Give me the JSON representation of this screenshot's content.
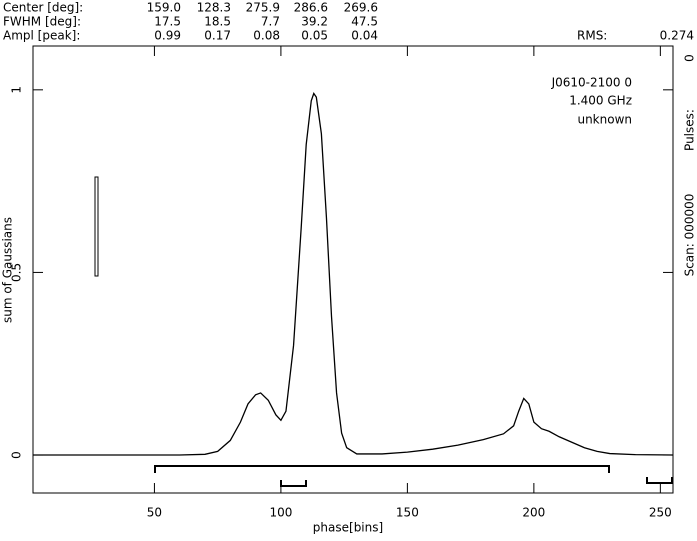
{
  "header": {
    "rows": [
      {
        "label": "Center [deg]:",
        "values": [
          "159.0",
          "128.3",
          "275.9",
          "286.6",
          "269.6"
        ]
      },
      {
        "label": "FWHM  [deg]:",
        "values": [
          "17.5",
          "18.5",
          "7.7",
          "39.2",
          "47.5"
        ]
      },
      {
        "label": "Ampl  [peak]:",
        "values": [
          "0.99",
          "0.17",
          "0.08",
          "0.05",
          "0.04"
        ]
      }
    ],
    "rms_label": "RMS:",
    "rms_value": "0.274"
  },
  "chart_data": {
    "type": "line",
    "xlabel": "phase[bins]",
    "ylabel": "sum of Gaussians",
    "annotations": [
      "J0610-2100 0",
      "1.400 GHz",
      "unknown"
    ],
    "side_texts": [
      "0",
      "Pulses:",
      "Scan: 000000"
    ],
    "color": "#000000",
    "x": [
      2,
      60,
      70,
      75,
      80,
      84,
      87,
      90,
      92,
      95,
      98,
      100,
      102,
      105,
      108,
      110,
      112,
      113,
      114,
      116,
      118,
      120,
      122,
      124,
      126,
      130,
      140,
      150,
      160,
      170,
      180,
      188,
      192,
      194,
      196,
      198,
      200,
      203,
      206,
      210,
      215,
      220,
      225,
      230,
      240,
      255
    ],
    "values": [
      0,
      0,
      0.002,
      0.01,
      0.04,
      0.09,
      0.14,
      0.165,
      0.17,
      0.15,
      0.11,
      0.095,
      0.12,
      0.3,
      0.62,
      0.85,
      0.97,
      0.99,
      0.98,
      0.88,
      0.65,
      0.38,
      0.17,
      0.06,
      0.02,
      0.003,
      0.003,
      0.008,
      0.016,
      0.027,
      0.042,
      0.058,
      0.08,
      0.12,
      0.155,
      0.14,
      0.09,
      0.072,
      0.065,
      0.05,
      0.035,
      0.02,
      0.01,
      0.004,
      0.001,
      0
    ],
    "xlim": [
      2,
      255
    ],
    "ylim": [
      -0.104,
      1.12
    ],
    "xticks": [
      50,
      100,
      150,
      200,
      250
    ],
    "yticks": [
      0,
      0.5,
      1
    ]
  }
}
